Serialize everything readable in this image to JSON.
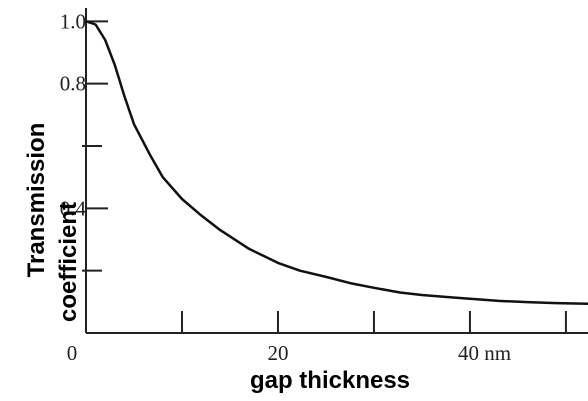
{
  "chart_data": {
    "type": "line",
    "xlabel": "gap thickness",
    "ylabel": [
      "Transmission",
      "coefficient"
    ],
    "x": [
      0,
      1,
      2,
      3,
      4,
      5,
      6.7,
      8,
      10,
      11.9,
      14,
      17,
      20,
      22.3,
      25,
      27.5,
      30,
      32.7,
      35,
      37.9,
      40,
      43,
      46,
      49,
      52.3
    ],
    "series": [
      {
        "color": "#111111",
        "values": [
          1.0,
          0.99,
          0.94,
          0.86,
          0.76,
          0.67,
          0.57,
          0.5,
          0.43,
          0.38,
          0.33,
          0.27,
          0.225,
          0.2,
          0.18,
          0.16,
          0.145,
          0.13,
          0.122,
          0.115,
          0.11,
          0.103,
          0.099,
          0.096,
          0.094
        ]
      }
    ],
    "xlim": [
      0,
      52.3
    ],
    "ylim": [
      0,
      1.03
    ],
    "xticks": [
      0,
      20,
      {
        "value": 40,
        "label": "40 nm"
      }
    ],
    "xminorticks": [
      10,
      30,
      50
    ],
    "yticks": [
      {
        "value": 1.0,
        "label": "1.0"
      },
      0.8,
      0.4
    ],
    "yminorticks": [
      0.2,
      0.6
    ]
  }
}
